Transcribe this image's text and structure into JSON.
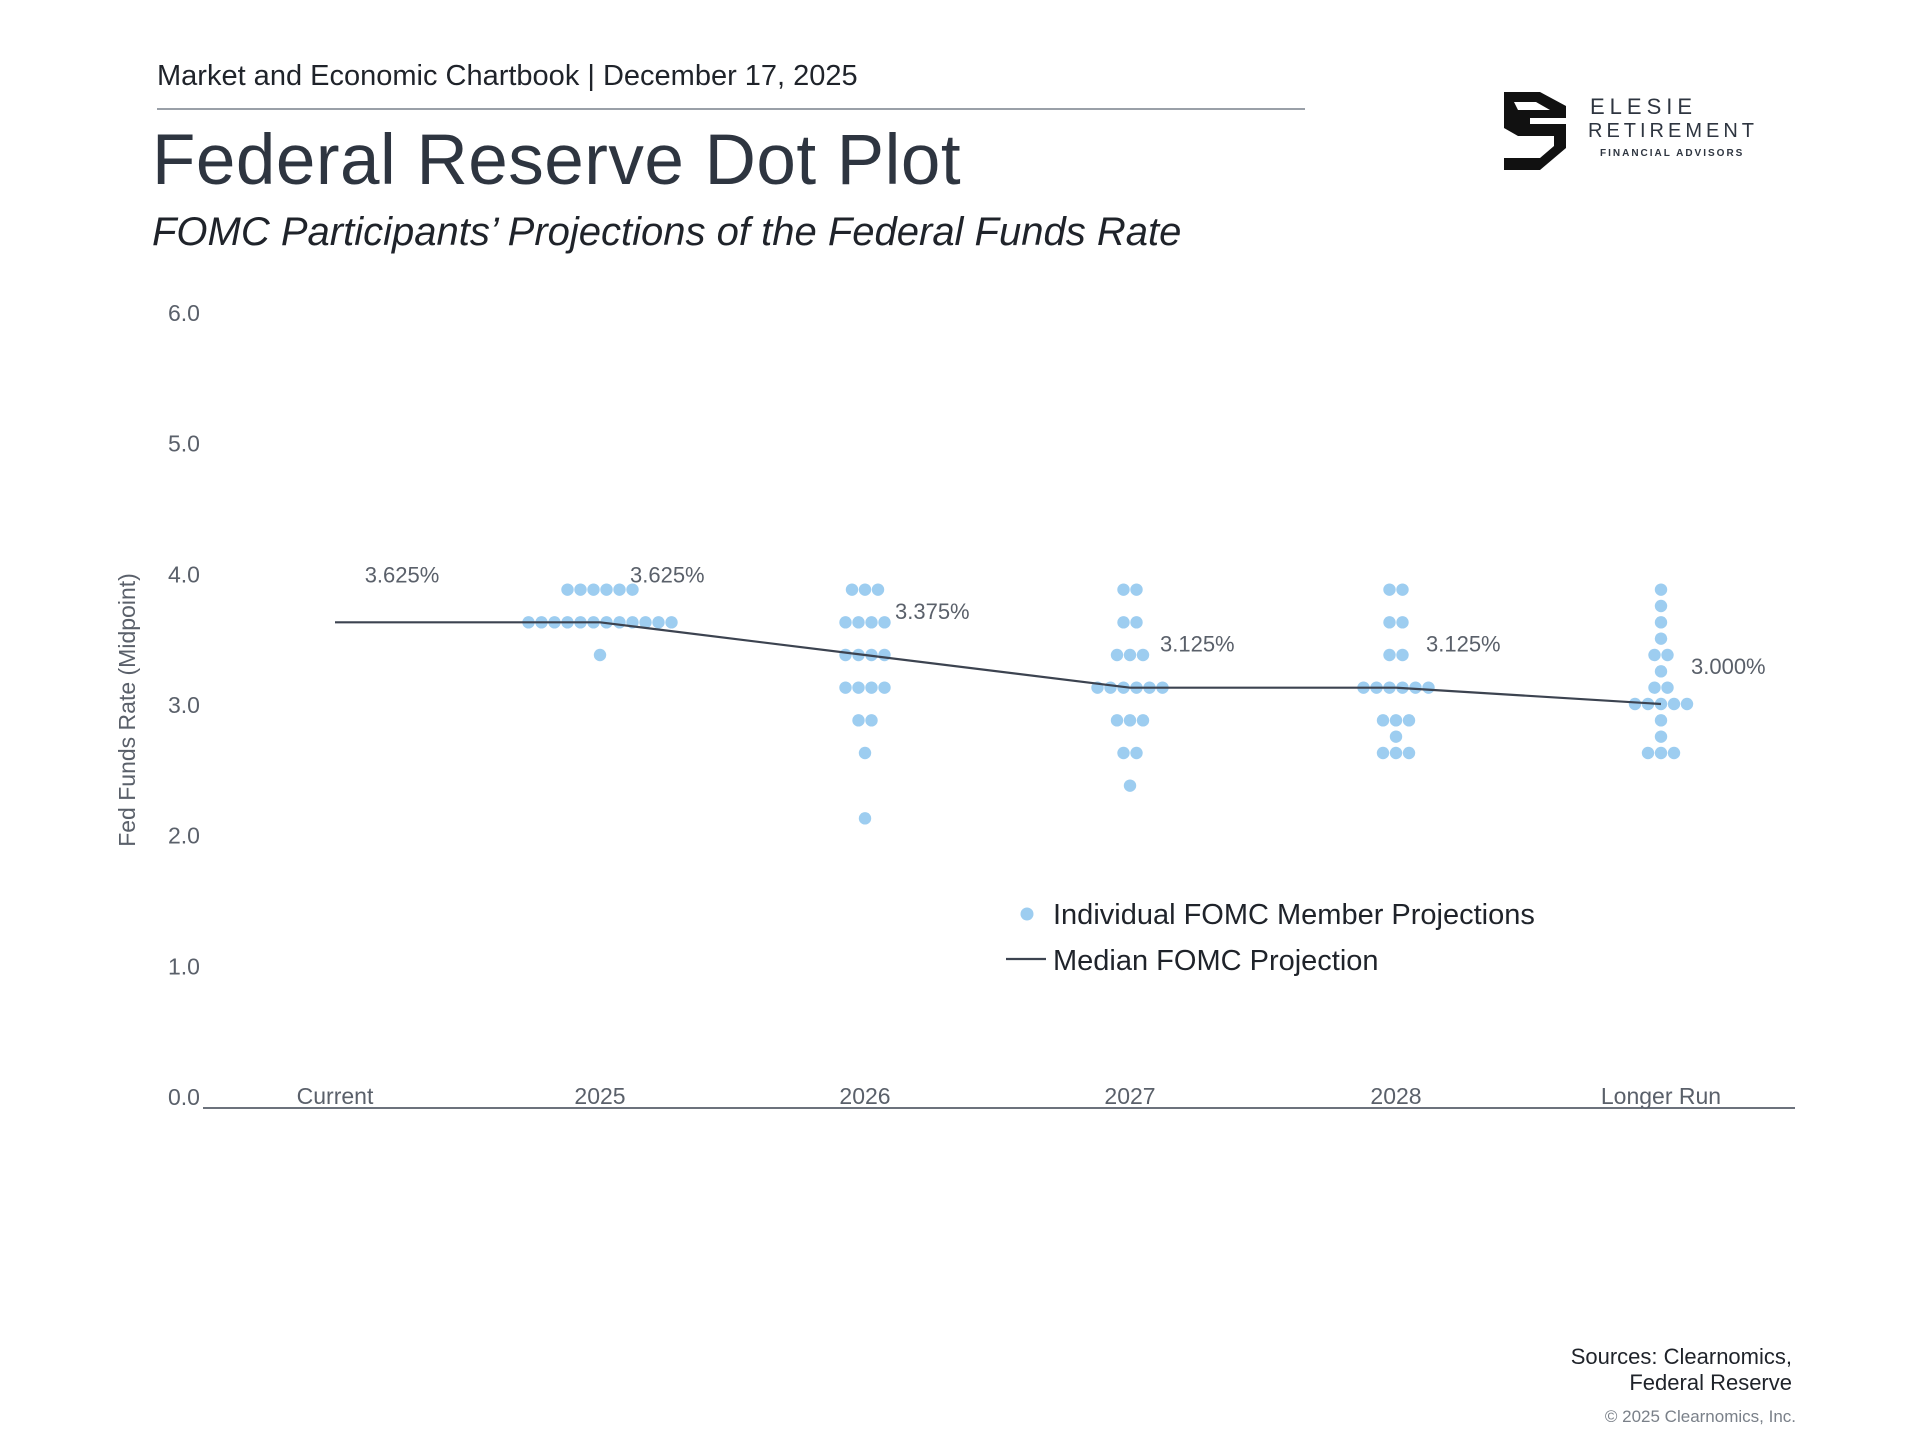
{
  "header": {
    "chartbook": "Market and Economic Chartbook | December 17, 2025",
    "title": "Federal Reserve Dot Plot",
    "subtitle": "FOMC Participants’ Projections of the Federal Funds Rate"
  },
  "logo": {
    "line1": "ELESIE",
    "line2": "RETIREMENT",
    "line3": "FINANCIAL ADVISORS"
  },
  "footer": {
    "sources_line1": "Sources: Clearnomics,",
    "sources_line2": "Federal Reserve",
    "copyright": "© 2025 Clearnomics, Inc."
  },
  "colors": {
    "dot": "#9dcdf0",
    "median_line": "#3c4350",
    "axis_text": "#5a606a"
  },
  "chart_data": {
    "type": "scatter",
    "title": "Federal Reserve Dot Plot",
    "ylabel": "Fed Funds Rate (Midpoint)",
    "xlabel": "",
    "ylim": [
      0,
      6
    ],
    "yticks": [
      "0.0",
      "1.0",
      "2.0",
      "3.0",
      "4.0",
      "5.0",
      "6.0"
    ],
    "categories": [
      "Current",
      "2025",
      "2026",
      "2027",
      "2028",
      "Longer Run"
    ],
    "legend": {
      "position": "center-right",
      "dots_label": "Individual FOMC Member Projections",
      "line_label": "Median FOMC Projection"
    },
    "median": {
      "name": "Median FOMC Projection",
      "values": [
        3.625,
        3.625,
        3.375,
        3.125,
        3.125,
        3.0
      ],
      "labels": [
        "3.625%",
        "3.625%",
        "3.375%",
        "3.125%",
        "3.125%",
        "3.000%"
      ]
    },
    "dots": {
      "name": "Individual FOMC Member Projections",
      "groups": [
        {
          "category": "2025",
          "rates": [
            {
              "rate": 3.875,
              "count": 6
            },
            {
              "rate": 3.625,
              "count": 12
            },
            {
              "rate": 3.375,
              "count": 1
            }
          ]
        },
        {
          "category": "2026",
          "rates": [
            {
              "rate": 3.875,
              "count": 3
            },
            {
              "rate": 3.625,
              "count": 4
            },
            {
              "rate": 3.375,
              "count": 4
            },
            {
              "rate": 3.125,
              "count": 4
            },
            {
              "rate": 2.875,
              "count": 2
            },
            {
              "rate": 2.625,
              "count": 1
            },
            {
              "rate": 2.125,
              "count": 1
            }
          ]
        },
        {
          "category": "2027",
          "rates": [
            {
              "rate": 3.875,
              "count": 2
            },
            {
              "rate": 3.625,
              "count": 2
            },
            {
              "rate": 3.375,
              "count": 3
            },
            {
              "rate": 3.125,
              "count": 6
            },
            {
              "rate": 2.875,
              "count": 3
            },
            {
              "rate": 2.625,
              "count": 2
            },
            {
              "rate": 2.375,
              "count": 1
            }
          ]
        },
        {
          "category": "2028",
          "rates": [
            {
              "rate": 3.875,
              "count": 2
            },
            {
              "rate": 3.625,
              "count": 2
            },
            {
              "rate": 3.375,
              "count": 2
            },
            {
              "rate": 3.125,
              "count": 6
            },
            {
              "rate": 2.875,
              "count": 3
            },
            {
              "rate": 2.75,
              "count": 1
            },
            {
              "rate": 2.625,
              "count": 3
            }
          ]
        },
        {
          "category": "Longer Run",
          "rates": [
            {
              "rate": 3.875,
              "count": 1
            },
            {
              "rate": 3.75,
              "count": 1
            },
            {
              "rate": 3.625,
              "count": 1
            },
            {
              "rate": 3.5,
              "count": 1
            },
            {
              "rate": 3.375,
              "count": 2
            },
            {
              "rate": 3.25,
              "count": 1
            },
            {
              "rate": 3.125,
              "count": 2
            },
            {
              "rate": 3.0,
              "count": 5
            },
            {
              "rate": 2.875,
              "count": 1
            },
            {
              "rate": 2.75,
              "count": 1
            },
            {
              "rate": 2.625,
              "count": 3
            }
          ]
        }
      ]
    }
  }
}
